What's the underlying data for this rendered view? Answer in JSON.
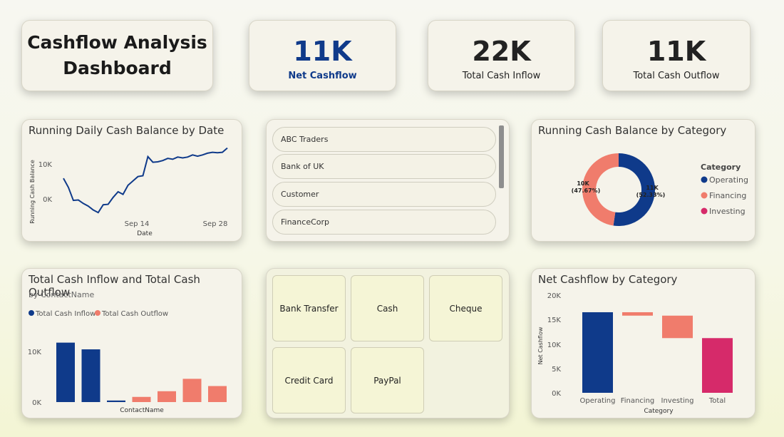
{
  "header": {
    "title_line1": "Cashflow Analysis",
    "title_line2": "Dashboard"
  },
  "kpis": [
    {
      "value": "11K",
      "label": "Net Cashflow",
      "color": "#0f3a8a"
    },
    {
      "value": "22K",
      "label": "Total Cash Inflow",
      "color": "#1a1a1a"
    },
    {
      "value": "11K",
      "label": "Total Cash Outflow",
      "color": "#1a1a1a"
    }
  ],
  "running_balance": {
    "title": "Running Daily Cash Balance by Date",
    "ylabel": "Running Cash Balance",
    "xlabel": "Date",
    "yticks": [
      "10K",
      "0K"
    ],
    "xticks": [
      "Sep 14",
      "Sep 28"
    ]
  },
  "contacts": {
    "items": [
      "ABC Traders",
      "Bank of UK",
      "Customer",
      "FinanceCorp"
    ]
  },
  "donut": {
    "title": "Running Cash Balance by Category",
    "legend_title": "Category",
    "legend": [
      {
        "name": "Operating",
        "color": "#0f3a8a"
      },
      {
        "name": "Financing",
        "color": "#f07c6c"
      },
      {
        "name": "Investing",
        "color": "#d62a6a"
      }
    ],
    "label_left_val": "10K",
    "label_left_pct": "(47.67%)",
    "label_right_val": "11K",
    "label_right_pct": "(52.33%)"
  },
  "inout": {
    "title": "Total Cash Inflow and Total Cash Outflow",
    "subtitle": "by ContactName",
    "legend_inflow": "Total Cash Inflow",
    "legend_outflow": "Total Cash Outflow",
    "xlabel": "ContactName",
    "yticks": [
      "10K",
      "0K"
    ]
  },
  "payment_methods": {
    "items": [
      "Bank Transfer",
      "Cash",
      "Cheque",
      "Credit Card",
      "PayPal"
    ]
  },
  "waterfall": {
    "title": "Net Cashflow by Category",
    "ylabel": "Net Cashflow",
    "xlabel": "Category",
    "yticks": [
      "20K",
      "15K",
      "10K",
      "5K",
      "0K"
    ]
  },
  "colors": {
    "navy": "#0f3a8a",
    "salmon": "#f07c6c",
    "pink": "#d62a6a"
  },
  "chart_data": [
    {
      "type": "line",
      "title": "Running Daily Cash Balance by Date",
      "xlabel": "Date",
      "ylabel": "Running Cash Balance",
      "ylim": [
        -3600,
        13500
      ],
      "x_index": [
        1,
        2,
        3,
        4,
        5,
        6,
        7,
        8,
        9,
        10,
        11,
        12,
        13,
        14,
        15,
        16,
        17,
        18,
        19,
        20,
        21,
        22,
        23,
        24,
        25,
        26,
        27,
        28,
        29,
        30,
        31,
        32,
        33,
        34
      ],
      "y": [
        4600,
        2500,
        -500,
        -400,
        -1200,
        -1800,
        -2700,
        -3300,
        -1500,
        -1400,
        200,
        1500,
        900,
        3000,
        4000,
        5000,
        5200,
        9600,
        8300,
        8400,
        8700,
        9200,
        9000,
        9500,
        9300,
        9500,
        10000,
        9700,
        10000,
        10400,
        10600,
        10500,
        10600,
        11600
      ],
      "xticks": [
        "Sep 14",
        "Sep 28"
      ]
    },
    {
      "type": "pie",
      "title": "Running Cash Balance by Category",
      "categories": [
        "Operating",
        "Financing",
        "Investing"
      ],
      "values": [
        52.33,
        47.67,
        0
      ],
      "labels": [
        "11K (52.33%)",
        "10K (47.67%)",
        ""
      ]
    },
    {
      "type": "bar",
      "title": "Total Cash Inflow and Total Cash Outflow",
      "xlabel": "ContactName",
      "ylim": [
        0,
        12000
      ],
      "series": [
        {
          "name": "Total Cash Inflow",
          "color": "#0f3a8a",
          "values": [
            11500,
            10200,
            300,
            0,
            0,
            0,
            0
          ]
        },
        {
          "name": "Total Cash Outflow",
          "color": "#f07c6c",
          "values": [
            0,
            0,
            0,
            1000,
            2100,
            4500,
            3100
          ]
        }
      ]
    },
    {
      "type": "bar",
      "title": "Net Cashflow by Category",
      "xlabel": "Category",
      "ylabel": "Net Cashflow",
      "ylim": [
        0,
        20000
      ],
      "categories": [
        "Operating",
        "Financing",
        "Investing",
        "Total"
      ],
      "start": [
        0,
        16500,
        15800,
        0
      ],
      "end": [
        16500,
        15800,
        11200,
        11200
      ],
      "colors": [
        "#0f3a8a",
        "#f07c6c",
        "#f07c6c",
        "#d62a6a"
      ]
    }
  ]
}
